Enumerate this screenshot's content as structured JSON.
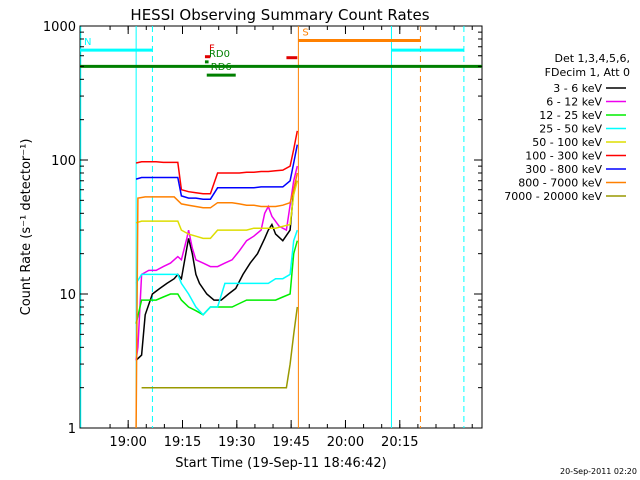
{
  "chart_data": {
    "type": "line",
    "title": "HESSI Observing Summary Count Rates",
    "xlabel": "Start Time (19-Sep-11 18:46:42)",
    "ylabel": "Count Rate (s⁻¹ detector⁻¹)",
    "yscale": "log",
    "ylim": [
      1,
      1000
    ],
    "y_ticks": [
      {
        "value": 1,
        "label": "1"
      },
      {
        "value": 10,
        "label": "10"
      },
      {
        "value": 100,
        "label": "100"
      },
      {
        "value": 1000,
        "label": "1000"
      }
    ],
    "xlim_min": [
      0,
      111
    ],
    "x_ticks": [
      {
        "value": 13.3,
        "label": "19:00"
      },
      {
        "value": 28.3,
        "label": "19:15"
      },
      {
        "value": 43.3,
        "label": "19:30"
      },
      {
        "value": 58.3,
        "label": "19:45"
      },
      {
        "value": 73.3,
        "label": "20:00"
      },
      {
        "value": 88.3,
        "label": "20:15"
      }
    ],
    "legend": {
      "placement": "right",
      "header": [
        "Det 1,3,4,5,6,",
        "FDecim 1, Att 0"
      ]
    },
    "series": [
      {
        "name": "3 - 6 keV",
        "color": "#000000",
        "points": [
          [
            15.5,
            3.2
          ],
          [
            17,
            3.5
          ],
          [
            18,
            7
          ],
          [
            20,
            10
          ],
          [
            22,
            11
          ],
          [
            24,
            12
          ],
          [
            26,
            13
          ],
          [
            27,
            14
          ],
          [
            28,
            13
          ],
          [
            29.5,
            22
          ],
          [
            30,
            26
          ],
          [
            31,
            20
          ],
          [
            32,
            14
          ],
          [
            33,
            12
          ],
          [
            35,
            10
          ],
          [
            37,
            9
          ],
          [
            39,
            9
          ],
          [
            41,
            10
          ],
          [
            43,
            11
          ],
          [
            45,
            14
          ],
          [
            47,
            17
          ],
          [
            49,
            20
          ],
          [
            51,
            26
          ],
          [
            52,
            30
          ],
          [
            53,
            33
          ],
          [
            54,
            28
          ],
          [
            56,
            25
          ],
          [
            58,
            30
          ],
          [
            59,
            60
          ],
          [
            60,
            70
          ]
        ]
      },
      {
        "name": "6 - 12 keV",
        "color": "#ee00ee",
        "points": [
          [
            15.5,
            3.2
          ],
          [
            16,
            4
          ],
          [
            17,
            14
          ],
          [
            19,
            15
          ],
          [
            21,
            15
          ],
          [
            23,
            16
          ],
          [
            25,
            17
          ],
          [
            27,
            19
          ],
          [
            28,
            18
          ],
          [
            29.5,
            26
          ],
          [
            30,
            30
          ],
          [
            31,
            22
          ],
          [
            32,
            18
          ],
          [
            34,
            17
          ],
          [
            36,
            16
          ],
          [
            38,
            16
          ],
          [
            40,
            17
          ],
          [
            42,
            18
          ],
          [
            44,
            21
          ],
          [
            46,
            25
          ],
          [
            48,
            27
          ],
          [
            50,
            30
          ],
          [
            51,
            40
          ],
          [
            52,
            45
          ],
          [
            53,
            38
          ],
          [
            55,
            32
          ],
          [
            57,
            30
          ],
          [
            59,
            70
          ],
          [
            60,
            90
          ]
        ]
      },
      {
        "name": "12 - 25 keV",
        "color": "#00ee00",
        "points": [
          [
            15.5,
            6
          ],
          [
            17,
            9
          ],
          [
            19,
            9
          ],
          [
            21,
            9
          ],
          [
            23,
            9.5
          ],
          [
            25,
            10
          ],
          [
            27,
            10
          ],
          [
            28,
            9
          ],
          [
            30,
            8
          ],
          [
            32,
            7.5
          ],
          [
            34,
            7
          ],
          [
            36,
            8
          ],
          [
            38,
            8
          ],
          [
            40,
            8
          ],
          [
            42,
            8
          ],
          [
            44,
            8.5
          ],
          [
            46,
            9
          ],
          [
            48,
            9
          ],
          [
            50,
            9
          ],
          [
            52,
            9
          ],
          [
            54,
            9
          ],
          [
            56,
            9.5
          ],
          [
            58,
            10
          ],
          [
            59,
            20
          ],
          [
            60,
            25
          ]
        ]
      },
      {
        "name": "25 - 50 keV",
        "color": "#00ffff",
        "points": [
          [
            15.5,
            12
          ],
          [
            17,
            14
          ],
          [
            19,
            14
          ],
          [
            21,
            14
          ],
          [
            23,
            14
          ],
          [
            25,
            14
          ],
          [
            27,
            14
          ],
          [
            28,
            12
          ],
          [
            30,
            10
          ],
          [
            32,
            8
          ],
          [
            34,
            7
          ],
          [
            36,
            8
          ],
          [
            38,
            8
          ],
          [
            40,
            12
          ],
          [
            42,
            12
          ],
          [
            44,
            12
          ],
          [
            46,
            12
          ],
          [
            48,
            12
          ],
          [
            50,
            12
          ],
          [
            52,
            12
          ],
          [
            54,
            13
          ],
          [
            56,
            13
          ],
          [
            58,
            14
          ],
          [
            59,
            25
          ],
          [
            60,
            30
          ]
        ]
      },
      {
        "name": "50 - 100 keV",
        "color": "#dddd00",
        "points": [
          [
            15.5,
            34
          ],
          [
            17,
            35
          ],
          [
            19,
            35
          ],
          [
            21,
            35
          ],
          [
            23,
            35
          ],
          [
            25,
            35
          ],
          [
            27,
            35
          ],
          [
            28,
            30
          ],
          [
            30,
            28
          ],
          [
            32,
            27
          ],
          [
            34,
            26
          ],
          [
            36,
            26
          ],
          [
            38,
            30
          ],
          [
            40,
            30
          ],
          [
            42,
            30
          ],
          [
            44,
            30
          ],
          [
            46,
            30
          ],
          [
            48,
            31
          ],
          [
            50,
            31
          ],
          [
            52,
            31
          ],
          [
            54,
            31
          ],
          [
            56,
            32
          ],
          [
            58,
            33
          ],
          [
            59,
            55
          ],
          [
            60,
            70
          ]
        ]
      },
      {
        "name": "100 - 300 keV",
        "color": "#ff0000",
        "points": [
          [
            15.5,
            95
          ],
          [
            17,
            97
          ],
          [
            19,
            97
          ],
          [
            21,
            97
          ],
          [
            23,
            96
          ],
          [
            25,
            96
          ],
          [
            27,
            96
          ],
          [
            28,
            60
          ],
          [
            30,
            58
          ],
          [
            32,
            57
          ],
          [
            34,
            56
          ],
          [
            36,
            56
          ],
          [
            38,
            80
          ],
          [
            40,
            80
          ],
          [
            42,
            80
          ],
          [
            44,
            80
          ],
          [
            46,
            81
          ],
          [
            48,
            81
          ],
          [
            50,
            82
          ],
          [
            52,
            82
          ],
          [
            54,
            83
          ],
          [
            56,
            84
          ],
          [
            58,
            90
          ],
          [
            59,
            120
          ],
          [
            60,
            165
          ]
        ]
      },
      {
        "name": "300 - 800 keV",
        "color": "#0000ff",
        "points": [
          [
            15.5,
            72
          ],
          [
            17,
            74
          ],
          [
            19,
            74
          ],
          [
            21,
            74
          ],
          [
            23,
            74
          ],
          [
            25,
            74
          ],
          [
            27,
            74
          ],
          [
            28,
            54
          ],
          [
            30,
            52
          ],
          [
            32,
            52
          ],
          [
            34,
            51
          ],
          [
            36,
            51
          ],
          [
            38,
            62
          ],
          [
            40,
            62
          ],
          [
            42,
            62
          ],
          [
            44,
            62
          ],
          [
            46,
            62
          ],
          [
            48,
            62
          ],
          [
            50,
            63
          ],
          [
            52,
            63
          ],
          [
            54,
            63
          ],
          [
            56,
            63
          ],
          [
            58,
            70
          ],
          [
            59,
            95
          ],
          [
            60,
            130
          ]
        ]
      },
      {
        "name": "800 - 7000 keV",
        "color": "#ff8000",
        "points": [
          [
            15.5,
            1
          ],
          [
            16,
            52
          ],
          [
            18,
            53
          ],
          [
            20,
            53
          ],
          [
            22,
            53
          ],
          [
            24,
            53
          ],
          [
            26,
            53
          ],
          [
            28,
            47
          ],
          [
            30,
            46
          ],
          [
            32,
            45
          ],
          [
            34,
            44
          ],
          [
            36,
            44
          ],
          [
            38,
            48
          ],
          [
            40,
            48
          ],
          [
            42,
            48
          ],
          [
            44,
            47
          ],
          [
            46,
            46
          ],
          [
            48,
            46
          ],
          [
            50,
            45
          ],
          [
            52,
            45
          ],
          [
            54,
            45
          ],
          [
            56,
            46
          ],
          [
            58,
            48
          ],
          [
            59,
            60
          ],
          [
            60,
            80
          ]
        ]
      },
      {
        "name": "7000 - 20000 keV",
        "color": "#999900",
        "points": [
          [
            17,
            2
          ],
          [
            30,
            2
          ],
          [
            55,
            2
          ],
          [
            57,
            2
          ],
          [
            58,
            3
          ],
          [
            59,
            5
          ],
          [
            60,
            8
          ]
        ]
      }
    ],
    "markers": [
      {
        "type": "vline",
        "x": 0.2,
        "color": "#00ffff",
        "style": "solid"
      },
      {
        "type": "vline",
        "x": 15.5,
        "color": "#00ffff",
        "style": "solid"
      },
      {
        "type": "vline",
        "x": 20,
        "color": "#00ffff",
        "style": "dashed"
      },
      {
        "type": "vline",
        "x": 60.3,
        "color": "#ff8000",
        "style": "solid"
      },
      {
        "type": "vline",
        "x": 86,
        "color": "#00ffff",
        "style": "solid"
      },
      {
        "type": "vline",
        "x": 94,
        "color": "#ff8000",
        "style": "dashed"
      },
      {
        "type": "vline",
        "x": 106,
        "color": "#00ffff",
        "style": "dashed"
      }
    ],
    "state_bars": [
      {
        "label": "N",
        "color": "#00ffff",
        "x0": 0,
        "x1": 20,
        "y": 660
      },
      {
        "label": "",
        "color": "#00ffff",
        "x0": 86,
        "x1": 106,
        "y": 660
      },
      {
        "label": "S",
        "color": "#ff8000",
        "x0": 60.3,
        "x1": 94,
        "y": 780
      },
      {
        "label": "",
        "color": "#007f00",
        "x0": 0,
        "x1": 111,
        "y": 500
      },
      {
        "label": "F",
        "color": "#e00000",
        "x0": 34.5,
        "x1": 36,
        "y": 590
      },
      {
        "label": "",
        "color": "#e00000",
        "x0": 57,
        "x1": 60,
        "y": 580
      },
      {
        "label": "RD0",
        "color": "#007f00",
        "x0": 34.5,
        "x1": 35.5,
        "y": 540
      },
      {
        "label": "RD6",
        "color": "#007f00",
        "x0": 35,
        "x1": 43,
        "y": 430
      }
    ],
    "footer": "20-Sep-2011 02:20"
  }
}
